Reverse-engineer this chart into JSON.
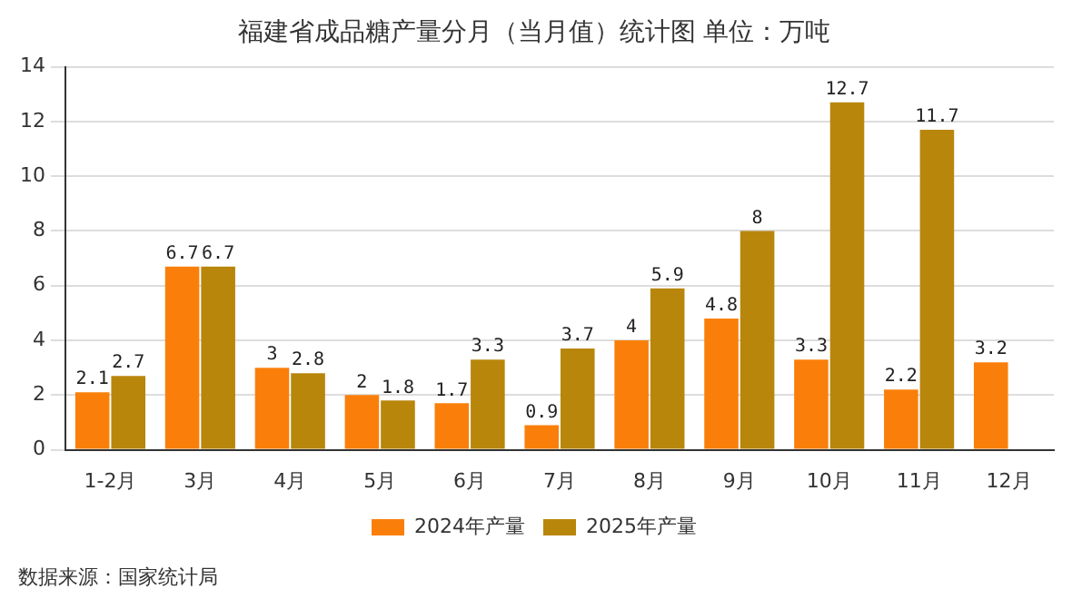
{
  "chart_data": {
    "type": "bar",
    "title": "福建省成品糖产量分月（当月值）统计图 单位：万吨",
    "categories": [
      "1-2月",
      "3月",
      "4月",
      "5月",
      "6月",
      "7月",
      "8月",
      "9月",
      "10月",
      "11月",
      "12月"
    ],
    "series": [
      {
        "name": "2024年产量",
        "color": "#fa7f0a",
        "values": [
          2.1,
          6.7,
          3,
          2,
          1.7,
          0.9,
          4,
          4.8,
          3.3,
          2.2,
          3.2
        ]
      },
      {
        "name": "2025年产量",
        "color": "#b8860b",
        "values": [
          2.7,
          6.7,
          2.8,
          1.8,
          3.3,
          3.7,
          5.9,
          8,
          12.7,
          11.7,
          null
        ]
      }
    ],
    "ylim": [
      0,
      14
    ],
    "yticks": [
      0,
      2,
      4,
      6,
      8,
      10,
      12,
      14
    ],
    "grid": "y",
    "legend": "bottom",
    "data_labels": true,
    "annotations": [
      "数据来源：国家统计局"
    ]
  }
}
